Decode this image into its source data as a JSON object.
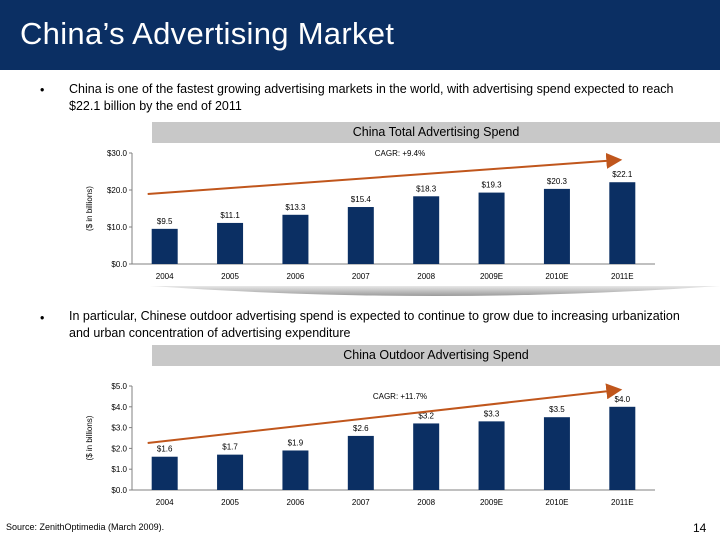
{
  "title": "China’s Advertising Market",
  "bullets": {
    "marker": "•",
    "first": "China is one of the fastest growing advertising markets in the world, with advertising spend expected to reach $22.1 billion by the end of 2011",
    "second": "In particular, Chinese outdoor advertising spend is expected to continue to grow due to increasing urbanization and urban concentration of advertising expenditure"
  },
  "colors": {
    "title_bar": "#0b2f63",
    "bar": "#0b2f63",
    "trend_arrow": "#c0561c",
    "band": "#c8c8c8"
  },
  "chart_data": [
    {
      "type": "bar",
      "title": "China Total Advertising Spend",
      "ylabel": "($ in billions)",
      "annotation": "CAGR: +9.4%",
      "categories": [
        "2004",
        "2005",
        "2006",
        "2007",
        "2008",
        "2009E",
        "2010E",
        "2011E"
      ],
      "values": [
        9.5,
        11.1,
        13.3,
        15.4,
        18.3,
        19.3,
        20.3,
        22.1
      ],
      "value_labels": [
        "$9.5",
        "$11.1",
        "$13.3",
        "$15.4",
        "$18.3",
        "$19.3",
        "$20.3",
        "$22.1"
      ],
      "yticks": [
        0,
        10,
        20,
        30
      ],
      "ytick_labels": [
        "$0.0",
        "$10.0",
        "$20.0",
        "$30.0"
      ],
      "ylim": [
        0,
        30
      ],
      "grid": false
    },
    {
      "type": "bar",
      "title": "China Outdoor Advertising Spend",
      "ylabel": "($ in billions)",
      "annotation": "CAGR: +11.7%",
      "categories": [
        "2004",
        "2005",
        "2006",
        "2007",
        "2008",
        "2009E",
        "2010E",
        "2011E"
      ],
      "values": [
        1.6,
        1.7,
        1.9,
        2.6,
        3.2,
        3.3,
        3.5,
        4.0
      ],
      "value_labels": [
        "$1.6",
        "$1.7",
        "$1.9",
        "$2.6",
        "$3.2",
        "$3.3",
        "$3.5",
        "$4.0"
      ],
      "yticks": [
        0,
        1,
        2,
        3,
        4,
        5
      ],
      "ytick_labels": [
        "$0.0",
        "$1.0",
        "$2.0",
        "$3.0",
        "$4.0",
        "$5.0"
      ],
      "ylim": [
        0,
        5
      ],
      "grid": false
    }
  ],
  "source": "Source: ZenithOptimedia (March 2009).",
  "page_number": "14"
}
